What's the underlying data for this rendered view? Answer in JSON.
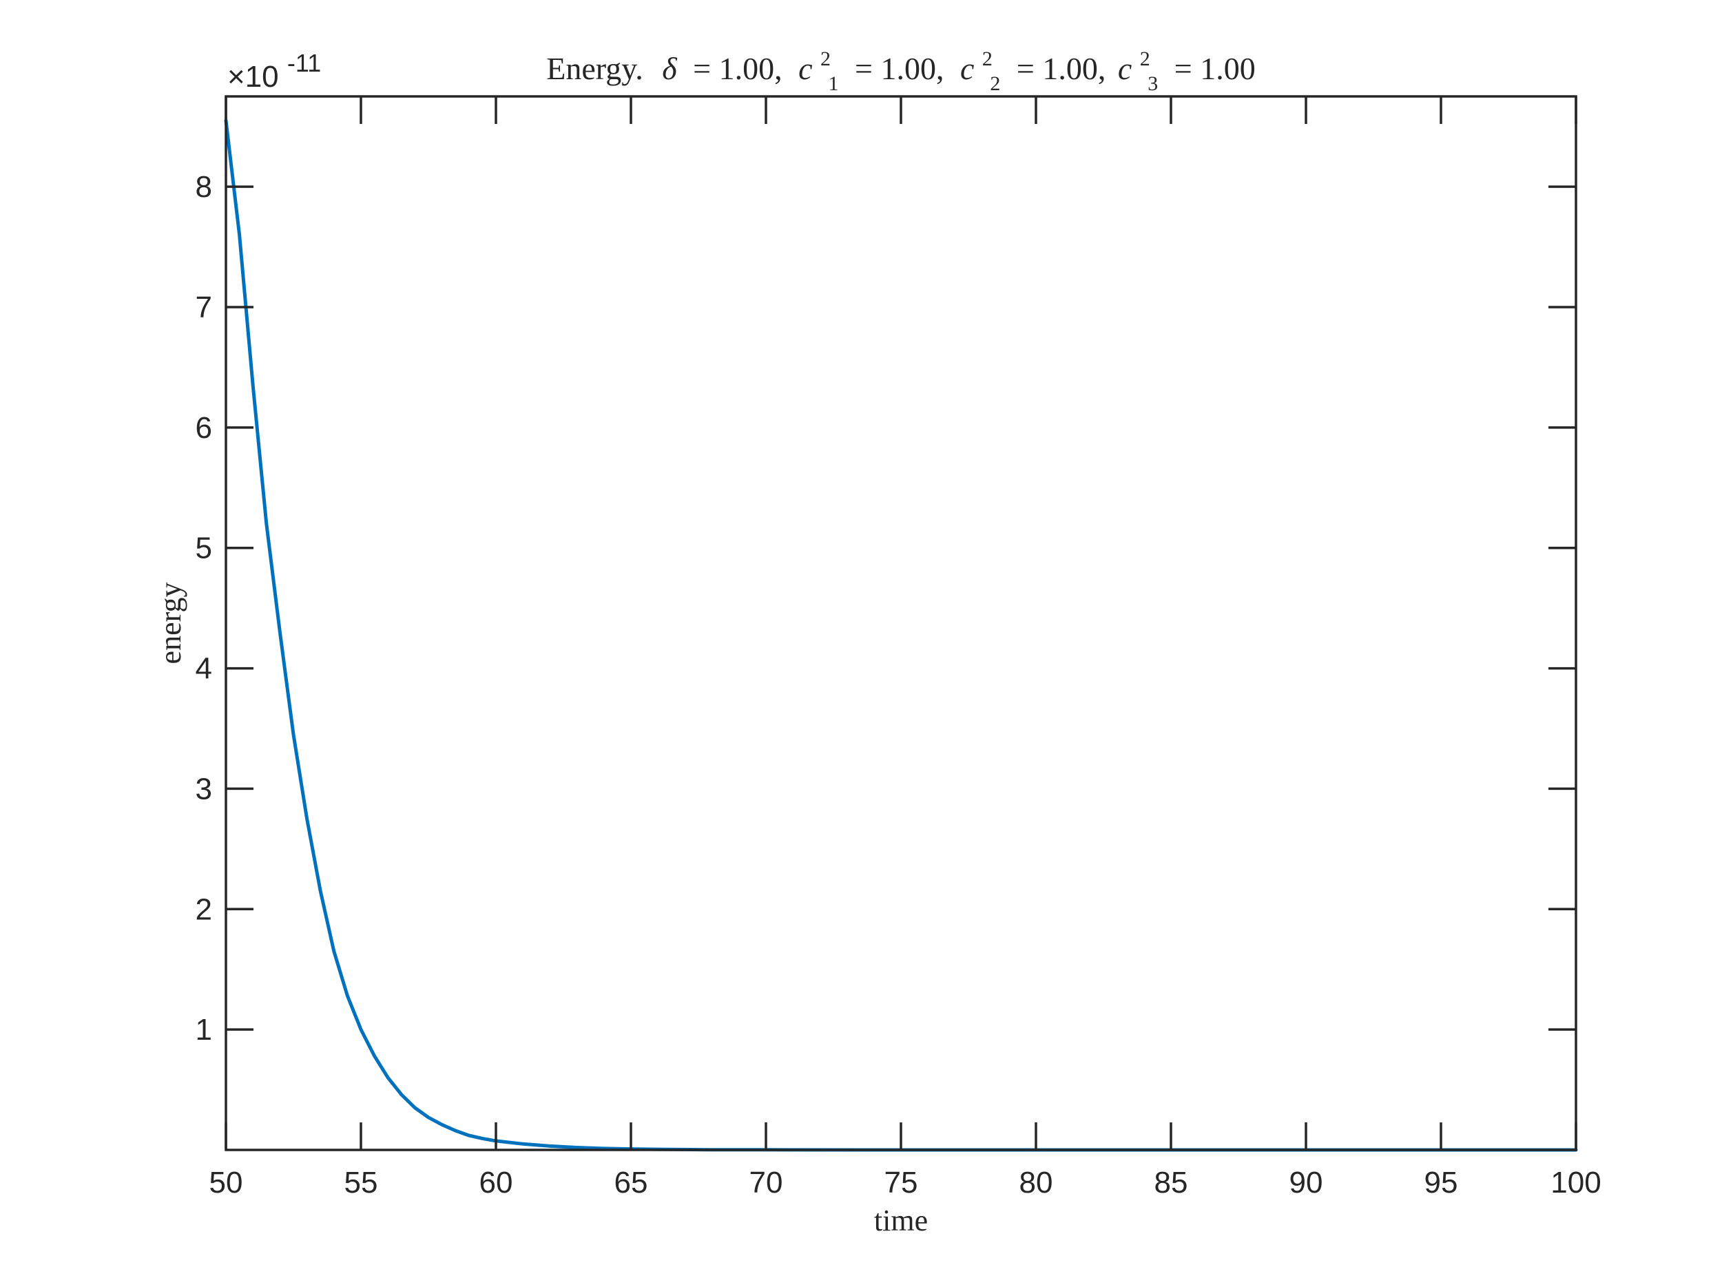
{
  "chart_data": {
    "type": "line",
    "title": {
      "prefix": "Energy.",
      "delta_symbol": "δ",
      "delta_value": "= 1.00,",
      "c_symbol": "c",
      "c1_sup": "2",
      "c1_sub": "1",
      "c1_value": "= 1.00,",
      "c2_sup": "2",
      "c2_sub": "2",
      "c2_value": "= 1.00,",
      "c3_sup": "2",
      "c3_sub": "3",
      "c3_value": "= 1.00"
    },
    "xlabel": "time",
    "ylabel": "energy",
    "y_exponent_base": "×10",
    "y_exponent_power": "-11",
    "xlim": [
      50,
      100
    ],
    "ylim": [
      0,
      8.75
    ],
    "x_ticks": [
      50,
      55,
      60,
      65,
      70,
      75,
      80,
      85,
      90,
      95,
      100
    ],
    "x_tick_labels": [
      "50",
      "55",
      "60",
      "65",
      "70",
      "75",
      "80",
      "85",
      "90",
      "95",
      "100"
    ],
    "y_ticks": [
      1,
      2,
      3,
      4,
      5,
      6,
      7,
      8
    ],
    "y_tick_labels": [
      "1",
      "2",
      "3",
      "4",
      "5",
      "6",
      "7",
      "8"
    ],
    "grid": false,
    "series": [
      {
        "color": "#0072BD",
        "x": [
          50,
          50.5,
          51,
          51.5,
          52,
          52.5,
          53,
          53.5,
          54,
          54.5,
          55,
          55.5,
          56,
          56.5,
          57,
          57.5,
          58,
          58.5,
          59,
          59.5,
          60,
          61,
          62,
          63,
          64,
          65,
          66,
          68,
          70,
          75,
          80,
          85,
          90,
          95,
          100
        ],
        "y": [
          8.55,
          7.6,
          6.35,
          5.2,
          4.3,
          3.45,
          2.75,
          2.15,
          1.65,
          1.28,
          1.0,
          0.78,
          0.6,
          0.46,
          0.35,
          0.27,
          0.21,
          0.16,
          0.12,
          0.095,
          0.075,
          0.05,
          0.032,
          0.02,
          0.012,
          0.008,
          0.005,
          0.002,
          0.001,
          0.0002,
          5e-05,
          1e-05,
          0.0,
          0.0,
          0.0
        ]
      }
    ]
  }
}
